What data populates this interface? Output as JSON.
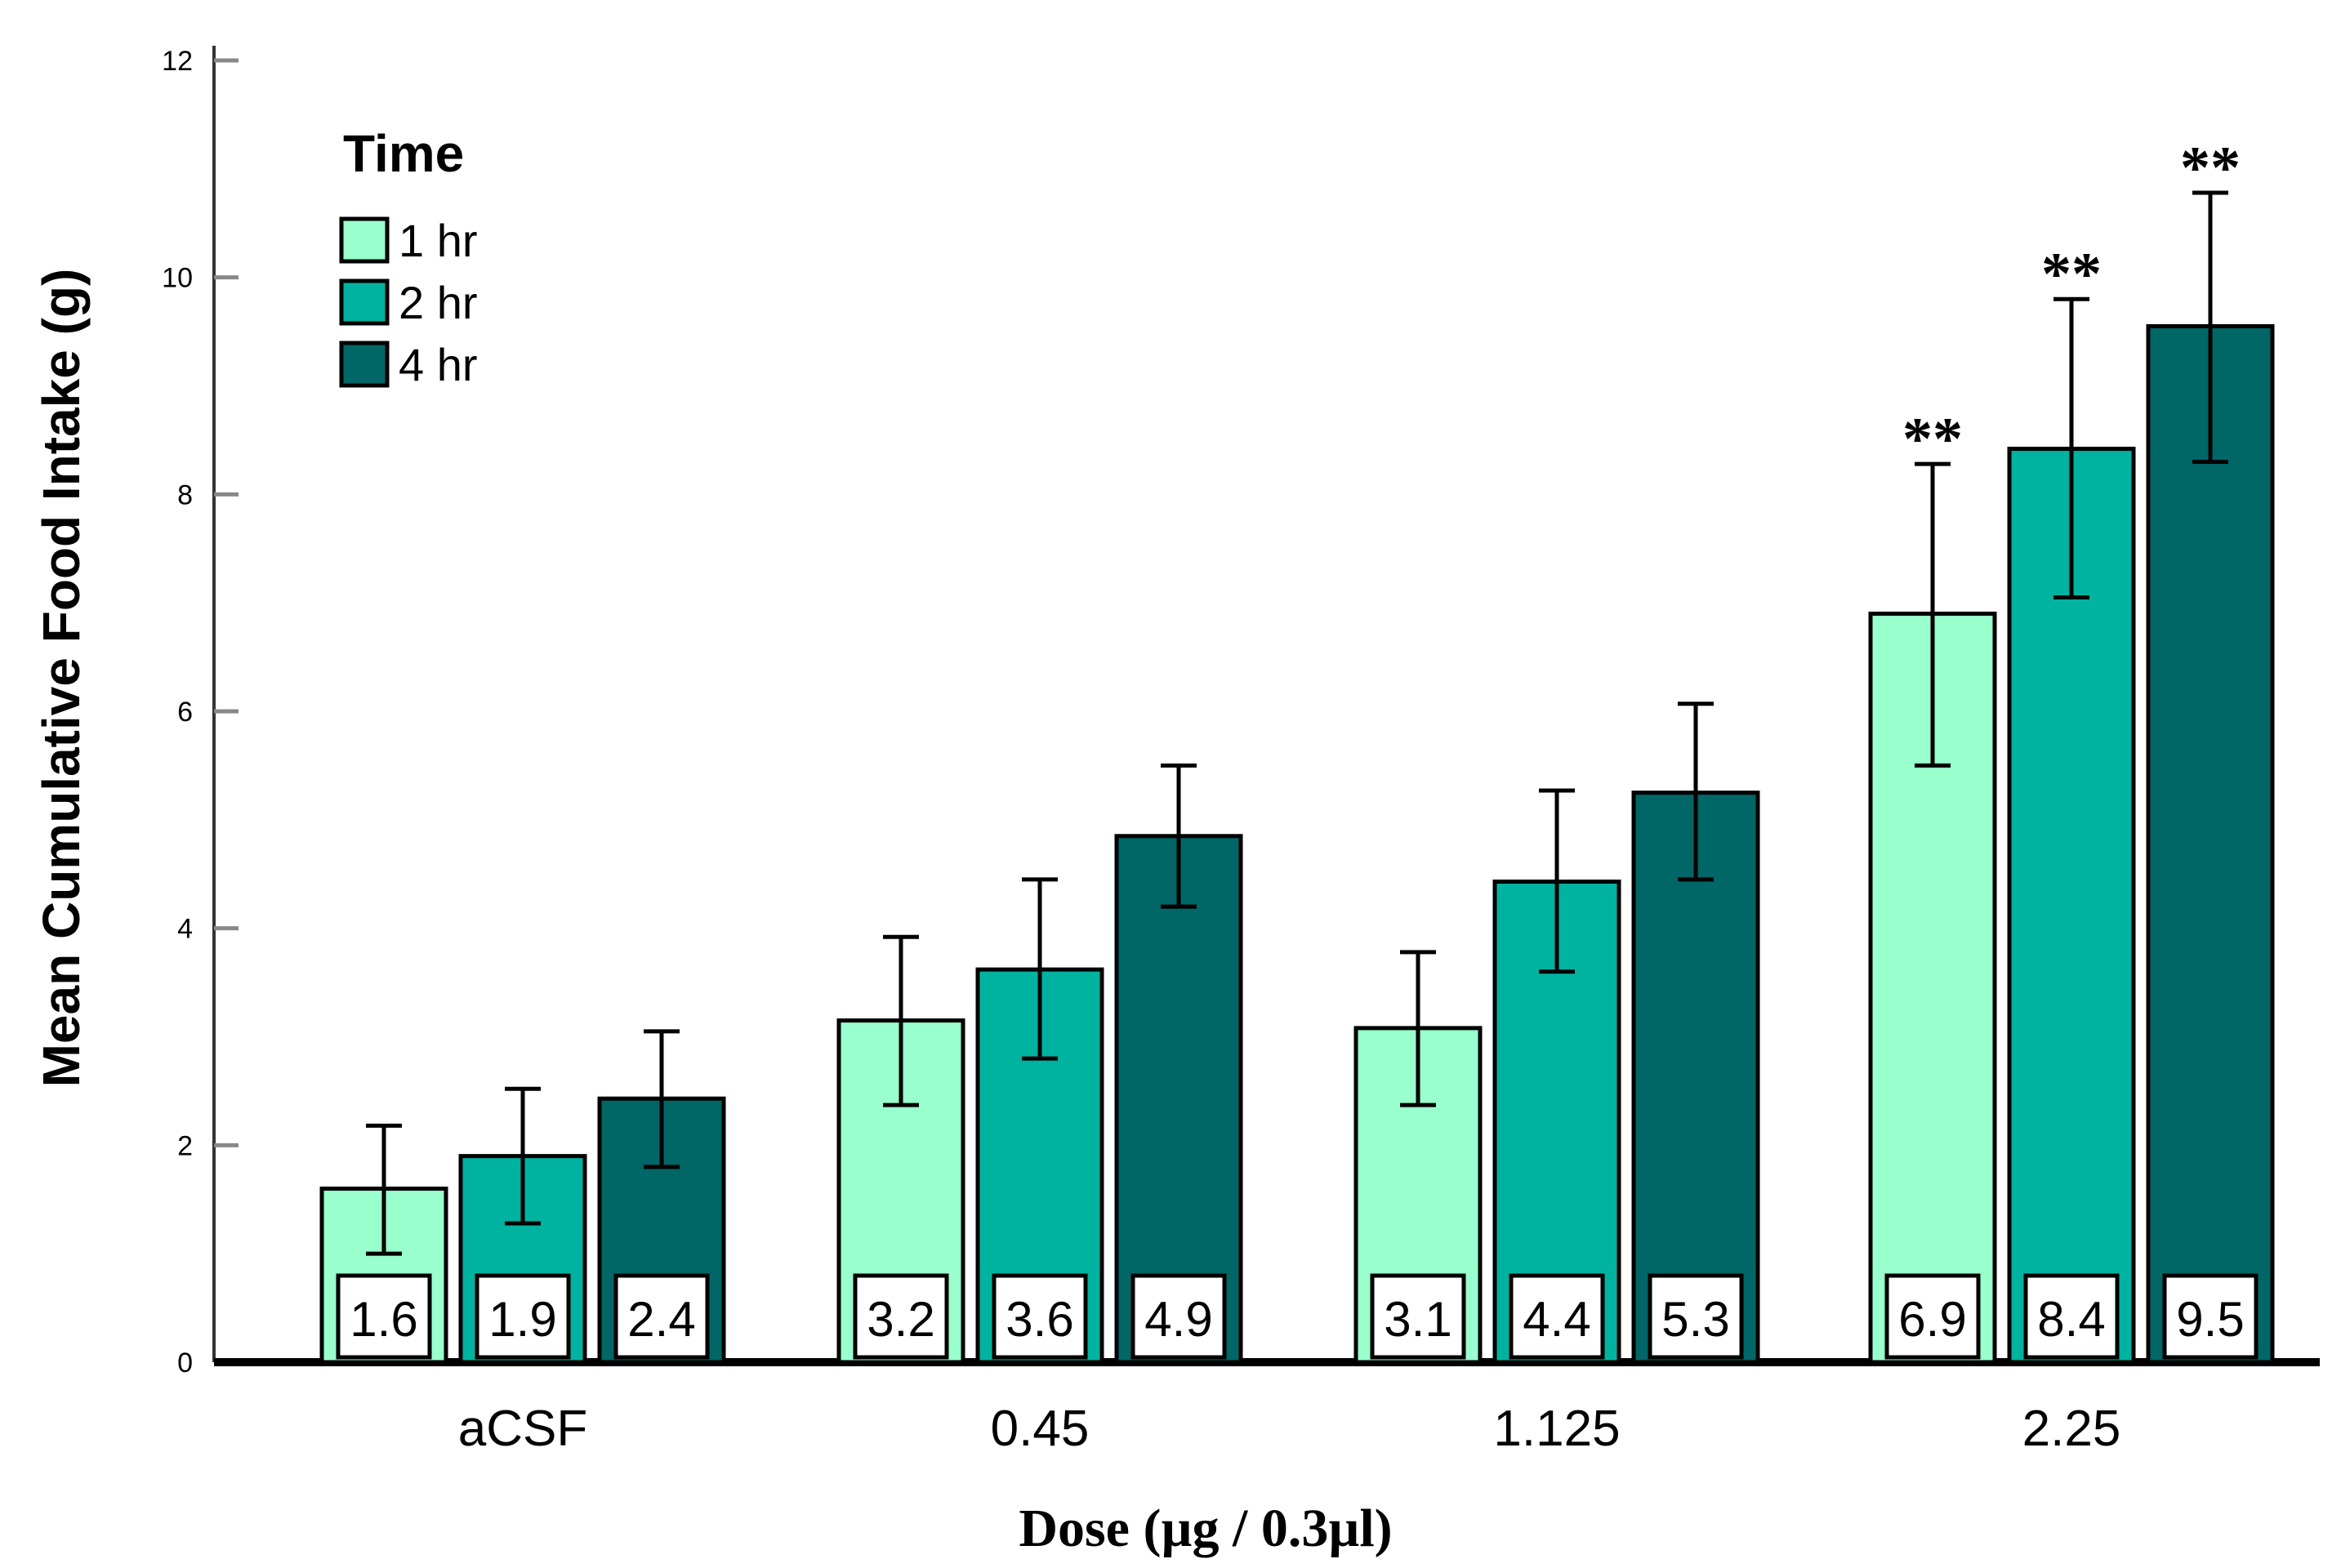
{
  "chart_data": {
    "type": "bar",
    "title": "",
    "xlabel": "Dose (µg / 0.3µl)",
    "ylabel": "Mean Cumulative Food Intake (g)",
    "ylim": [
      0,
      12
    ],
    "yticks": [
      "0",
      "2",
      "4",
      "6",
      "8",
      "10",
      "12"
    ],
    "categories": [
      "aCSF",
      "0.45",
      "1.125",
      "2.25"
    ],
    "legend_title": "Time",
    "legend_position": "top-left",
    "grid": false,
    "series": [
      {
        "name": "1 hr",
        "color": "#99ffcc",
        "values": [
          1.6,
          3.15,
          3.08,
          6.9
        ],
        "labels": [
          "1.6",
          "3.2",
          "3.1",
          "6.9"
        ],
        "err_low": [
          1.0,
          2.37,
          2.37,
          5.5
        ],
        "err_high": [
          2.18,
          3.92,
          3.78,
          8.28
        ],
        "significance": [
          "",
          "",
          "",
          "**"
        ]
      },
      {
        "name": "2 hr",
        "color": "#00b3a0",
        "values": [
          1.9,
          3.62,
          4.43,
          8.42
        ],
        "labels": [
          "1.9",
          "3.6",
          "4.4",
          "8.4"
        ],
        "err_low": [
          1.28,
          2.8,
          3.6,
          7.05
        ],
        "err_high": [
          2.52,
          4.45,
          5.27,
          9.8
        ],
        "significance": [
          "",
          "",
          "",
          "**"
        ]
      },
      {
        "name": "4 hr",
        "color": "#006666",
        "values": [
          2.43,
          4.85,
          5.25,
          9.55
        ],
        "labels": [
          "2.4",
          "4.9",
          "5.3",
          "9.5"
        ],
        "err_low": [
          1.8,
          4.2,
          4.45,
          8.3
        ],
        "err_high": [
          3.05,
          5.5,
          6.07,
          10.78
        ],
        "significance": [
          "",
          "",
          "",
          "**"
        ]
      }
    ]
  }
}
